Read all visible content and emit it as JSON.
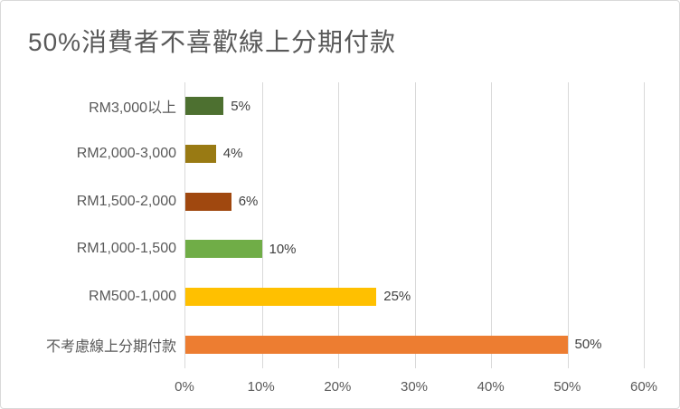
{
  "title": "50%消費者不喜歡線上分期付款",
  "colors": {
    "background": "#ffffff",
    "frame_border": "#d9d9d9",
    "gridline": "#d9d9d9",
    "title_text": "#595959",
    "axis_text": "#595959",
    "data_label_text": "#404040"
  },
  "chart_data": {
    "type": "bar",
    "orientation": "horizontal",
    "title": "50%消費者不喜歡線上分期付款",
    "categories": [
      "RM3,000以上",
      "RM2,000-3,000",
      "RM1,500-2,000",
      "RM1,000-1,500",
      "RM500-1,000",
      "不考慮線上分期付款"
    ],
    "values": [
      5,
      4,
      6,
      10,
      25,
      50
    ],
    "data_labels": [
      "5%",
      "4%",
      "6%",
      "10%",
      "25%",
      "50%"
    ],
    "bar_colors": [
      "#4d7030",
      "#997a13",
      "#a0480f",
      "#70ad47",
      "#ffc000",
      "#ed7d31"
    ],
    "xlabel": "",
    "ylabel": "",
    "xlim": [
      0,
      60
    ],
    "x_ticks": [
      0,
      10,
      20,
      30,
      40,
      50,
      60
    ],
    "x_tick_labels": [
      "0%",
      "10%",
      "20%",
      "30%",
      "40%",
      "50%",
      "60%"
    ],
    "grid": true,
    "legend": false
  }
}
